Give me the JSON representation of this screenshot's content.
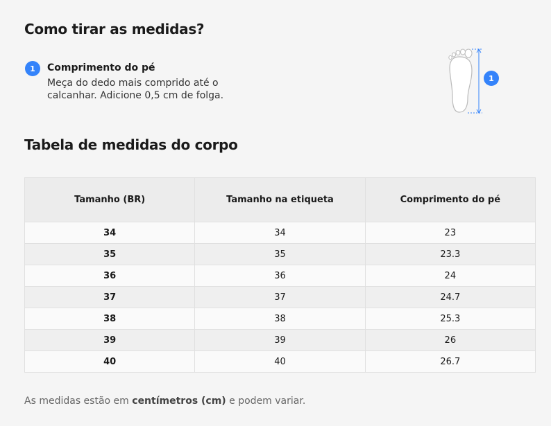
{
  "header": {
    "title": "Como tirar as medidas?"
  },
  "steps": [
    {
      "number": "1",
      "title": "Comprimento do pé",
      "description": "Meça do dedo mais comprido até o calcanhar. Adicione 0,5 cm de folga."
    }
  ],
  "section_title": "Tabela de medidas do corpo",
  "table": {
    "columns": [
      "Tamanho (BR)",
      "Tamanho na etiqueta",
      "Comprimento do pé"
    ],
    "rows": [
      [
        "34",
        "34",
        "23"
      ],
      [
        "35",
        "35",
        "23.3"
      ],
      [
        "36",
        "36",
        "24"
      ],
      [
        "37",
        "37",
        "24.7"
      ],
      [
        "38",
        "38",
        "25.3"
      ],
      [
        "39",
        "39",
        "26"
      ],
      [
        "40",
        "40",
        "26.7"
      ]
    ]
  },
  "footer": {
    "before": "As medidas estão em ",
    "bold": "centímetros (cm)",
    "after": " e podem variar."
  }
}
